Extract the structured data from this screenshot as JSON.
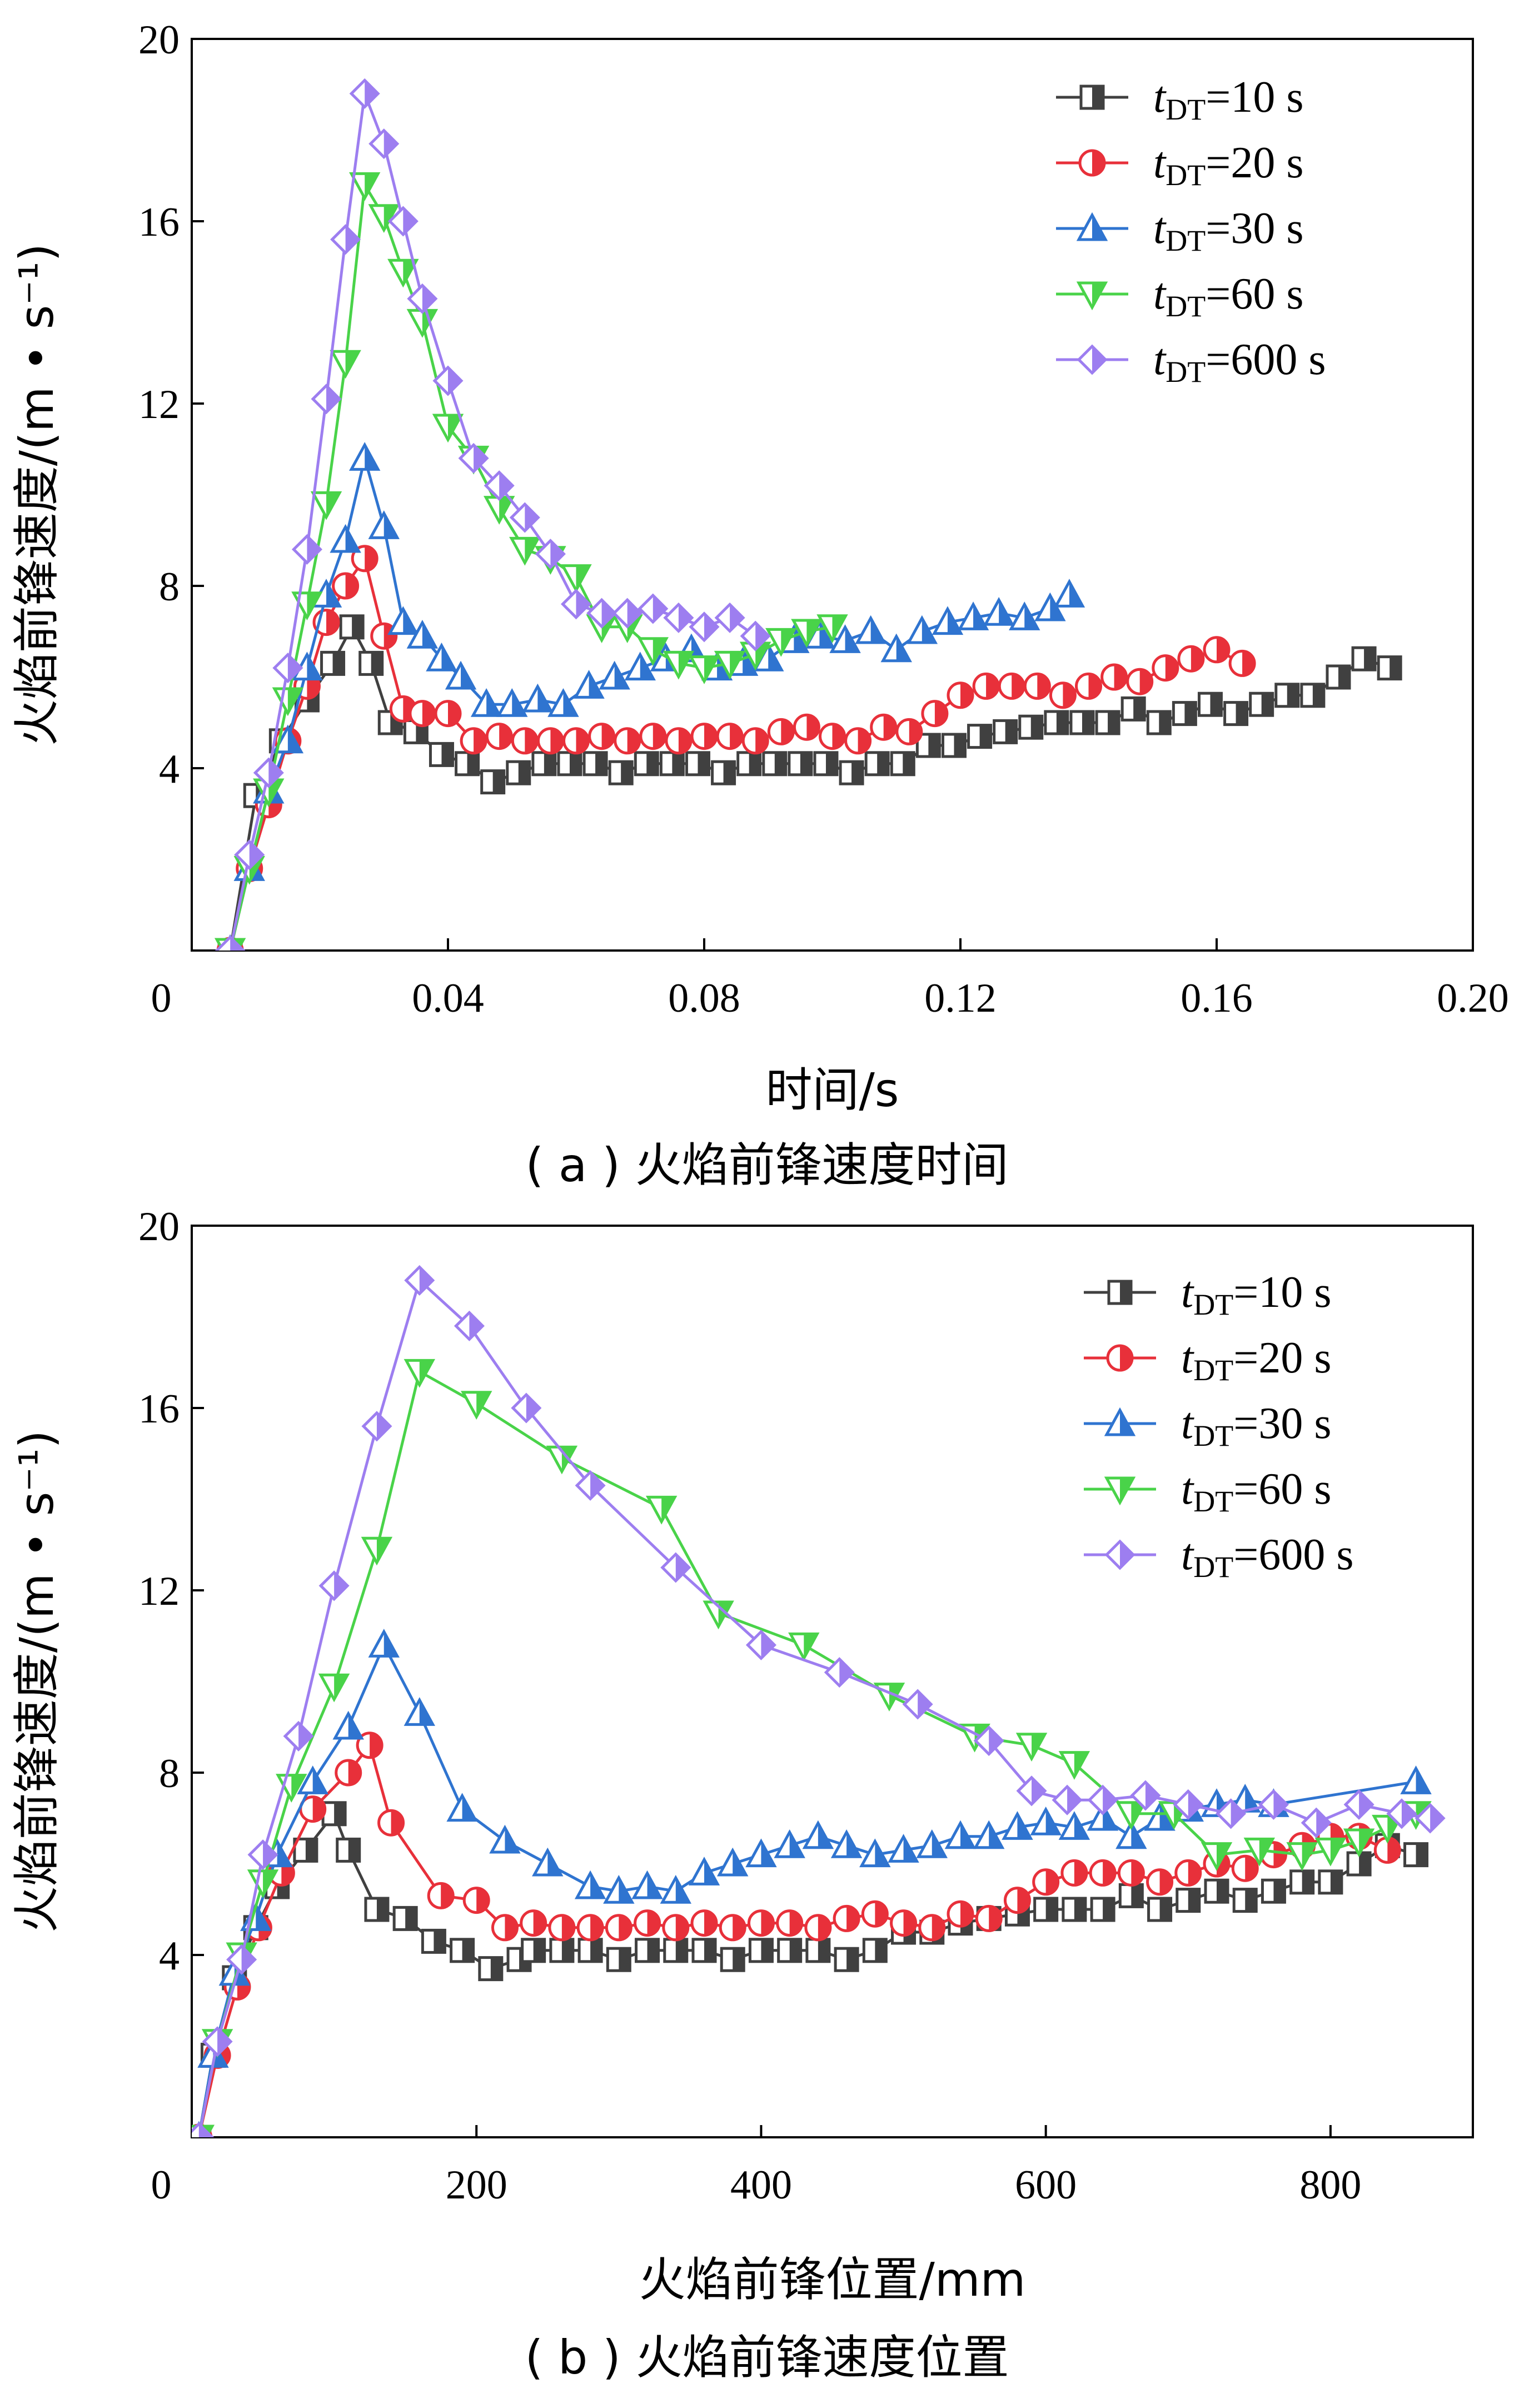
{
  "chart_data": [
    {
      "type": "line",
      "caption": "( a ) 火焰前锋速度时间",
      "xlabel": "时间/s",
      "ylabel": "火焰前锋速度/(m • s⁻¹)",
      "xlim": [
        0,
        0.2
      ],
      "ylim": [
        0,
        20
      ],
      "xticks": [
        "0",
        "0.04",
        "0.08",
        "0.12",
        "0.16",
        "0.20"
      ],
      "yticks": [
        "4",
        "8",
        "12",
        "16",
        "20"
      ],
      "legend_position": "top-right",
      "series": [
        {
          "name": "tDT=10 s",
          "name_var": "t",
          "name_sub": "DT",
          "name_rest": "=10 s",
          "color": "#404040",
          "marker": "square",
          "x": [
            0.006,
            0.01,
            0.014,
            0.018,
            0.022,
            0.025,
            0.028,
            0.031,
            0.035,
            0.039,
            0.043,
            0.047,
            0.051,
            0.055,
            0.059,
            0.063,
            0.067,
            0.071,
            0.075,
            0.079,
            0.083,
            0.087,
            0.091,
            0.095,
            0.099,
            0.103,
            0.107,
            0.111,
            0.115,
            0.119,
            0.123,
            0.127,
            0.131,
            0.135,
            0.139,
            0.143,
            0.147,
            0.151,
            0.155,
            0.159,
            0.163,
            0.167,
            0.171,
            0.175,
            0.179,
            0.183,
            0.187
          ],
          "y": [
            0,
            3.4,
            4.6,
            5.5,
            6.3,
            7.1,
            6.3,
            5.0,
            4.8,
            4.3,
            4.1,
            3.7,
            3.9,
            4.1,
            4.1,
            4.1,
            3.9,
            4.1,
            4.1,
            4.1,
            3.9,
            4.1,
            4.1,
            4.1,
            4.1,
            3.9,
            4.1,
            4.1,
            4.5,
            4.5,
            4.7,
            4.8,
            4.9,
            5.0,
            5.0,
            5.0,
            5.3,
            5.0,
            5.2,
            5.4,
            5.2,
            5.4,
            5.6,
            5.6,
            6.0,
            6.4,
            6.2
          ]
        },
        {
          "name": "tDT=20 s",
          "name_var": "t",
          "name_sub": "DT",
          "name_rest": "=20 s",
          "color": "#e8303a",
          "marker": "circle",
          "x": [
            0.006,
            0.009,
            0.012,
            0.015,
            0.018,
            0.021,
            0.024,
            0.027,
            0.03,
            0.033,
            0.036,
            0.04,
            0.044,
            0.048,
            0.052,
            0.056,
            0.06,
            0.064,
            0.068,
            0.072,
            0.076,
            0.08,
            0.084,
            0.088,
            0.092,
            0.096,
            0.1,
            0.104,
            0.108,
            0.112,
            0.116,
            0.12,
            0.124,
            0.128,
            0.132,
            0.136,
            0.14,
            0.144,
            0.148,
            0.152,
            0.156,
            0.16,
            0.164
          ],
          "y": [
            0,
            1.8,
            3.2,
            4.6,
            5.8,
            7.2,
            8.0,
            8.6,
            6.9,
            5.3,
            5.2,
            5.2,
            4.6,
            4.7,
            4.6,
            4.6,
            4.6,
            4.7,
            4.6,
            4.7,
            4.6,
            4.7,
            4.7,
            4.6,
            4.8,
            4.9,
            4.7,
            4.6,
            4.9,
            4.8,
            5.2,
            5.6,
            5.8,
            5.8,
            5.8,
            5.6,
            5.8,
            6.0,
            5.9,
            6.2,
            6.4,
            6.6,
            6.3
          ]
        },
        {
          "name": "tDT=30 s",
          "name_var": "t",
          "name_sub": "DT",
          "name_rest": "=30 s",
          "color": "#2f74d0",
          "marker": "triangle-up",
          "x": [
            0.006,
            0.009,
            0.012,
            0.015,
            0.018,
            0.021,
            0.024,
            0.027,
            0.03,
            0.033,
            0.036,
            0.039,
            0.042,
            0.046,
            0.05,
            0.054,
            0.058,
            0.062,
            0.066,
            0.07,
            0.074,
            0.078,
            0.082,
            0.086,
            0.09,
            0.094,
            0.098,
            0.102,
            0.106,
            0.11,
            0.114,
            0.118,
            0.122,
            0.126,
            0.13,
            0.134,
            0.137
          ],
          "y": [
            0,
            1.8,
            3.5,
            4.6,
            6.2,
            7.8,
            9.0,
            10.8,
            9.3,
            7.2,
            6.9,
            6.4,
            6.0,
            5.4,
            5.4,
            5.5,
            5.4,
            5.8,
            6.0,
            6.2,
            6.4,
            6.6,
            6.2,
            6.3,
            6.4,
            6.8,
            6.9,
            6.8,
            7.0,
            6.6,
            7.0,
            7.2,
            7.3,
            7.4,
            7.3,
            7.5,
            7.8
          ]
        },
        {
          "name": "tDT=60 s",
          "name_var": "t",
          "name_sub": "DT",
          "name_rest": "=60 s",
          "color": "#49d349",
          "marker": "triangle-down",
          "x": [
            0.006,
            0.009,
            0.012,
            0.015,
            0.018,
            0.021,
            0.024,
            0.027,
            0.03,
            0.033,
            0.036,
            0.04,
            0.044,
            0.048,
            0.052,
            0.056,
            0.06,
            0.064,
            0.068,
            0.072,
            0.076,
            0.08,
            0.084,
            0.088,
            0.092,
            0.096,
            0.1
          ],
          "y": [
            0,
            1.8,
            3.5,
            5.5,
            7.6,
            9.8,
            12.9,
            16.8,
            16.1,
            14.9,
            13.8,
            11.5,
            10.8,
            9.7,
            8.8,
            8.6,
            8.2,
            7.1,
            7.1,
            6.6,
            6.3,
            6.2,
            6.3,
            6.5,
            6.8,
            7.0,
            7.1
          ]
        },
        {
          "name": "tDT=600 s",
          "name_var": "t",
          "name_sub": "DT",
          "name_rest": "=600 s",
          "color": "#9d7ef0",
          "marker": "diamond",
          "x": [
            0.006,
            0.009,
            0.012,
            0.015,
            0.018,
            0.021,
            0.024,
            0.027,
            0.03,
            0.033,
            0.036,
            0.04,
            0.044,
            0.048,
            0.052,
            0.056,
            0.06,
            0.064,
            0.068,
            0.072,
            0.076,
            0.08,
            0.084,
            0.088
          ],
          "y": [
            0,
            2.1,
            3.9,
            6.2,
            8.8,
            12.1,
            15.6,
            18.8,
            17.7,
            16.0,
            14.3,
            12.5,
            10.8,
            10.2,
            9.5,
            8.7,
            7.6,
            7.4,
            7.4,
            7.5,
            7.3,
            7.1,
            7.3,
            6.9
          ]
        }
      ]
    },
    {
      "type": "line",
      "caption": "( b ) 火焰前锋速度位置",
      "xlabel": "火焰前锋位置/mm",
      "ylabel": "火焰前锋速度/(m • s⁻¹)",
      "xlim": [
        0,
        900
      ],
      "ylim": [
        0,
        20
      ],
      "xticks": [
        "0",
        "200",
        "400",
        "600",
        "800"
      ],
      "yticks": [
        "4",
        "8",
        "12",
        "16",
        "20"
      ],
      "legend_position": "top-right",
      "series": [
        {
          "name": "tDT=10 s",
          "name_var": "t",
          "name_sub": "DT",
          "name_rest": "=10 s",
          "color": "#404040",
          "marker": "square",
          "x": [
            5,
            15,
            30,
            45,
            60,
            80,
            100,
            110,
            130,
            150,
            170,
            190,
            210,
            230,
            240,
            260,
            280,
            300,
            320,
            340,
            360,
            380,
            400,
            420,
            440,
            460,
            480,
            500,
            520,
            540,
            560,
            580,
            600,
            620,
            640,
            660,
            680,
            700,
            720,
            740,
            760,
            780,
            800,
            820,
            840,
            860
          ],
          "y": [
            0,
            1.8,
            3.5,
            4.6,
            5.5,
            6.3,
            7.1,
            6.3,
            5.0,
            4.8,
            4.3,
            4.1,
            3.7,
            3.9,
            4.1,
            4.1,
            4.1,
            3.9,
            4.1,
            4.1,
            4.1,
            3.9,
            4.1,
            4.1,
            4.1,
            3.9,
            4.1,
            4.5,
            4.5,
            4.7,
            4.8,
            4.9,
            5.0,
            5.0,
            5.0,
            5.3,
            5.0,
            5.2,
            5.4,
            5.2,
            5.4,
            5.6,
            5.6,
            6.0,
            6.4,
            6.2
          ]
        },
        {
          "name": "tDT=20 s",
          "name_var": "t",
          "name_sub": "DT",
          "name_rest": "=20 s",
          "color": "#e8303a",
          "marker": "circle",
          "x": [
            5,
            18,
            32,
            47,
            63,
            85,
            110,
            125,
            140,
            175,
            200,
            220,
            240,
            260,
            280,
            300,
            320,
            340,
            360,
            380,
            400,
            420,
            440,
            460,
            480,
            500,
            520,
            540,
            560,
            580,
            600,
            620,
            640,
            660,
            680,
            700,
            720,
            740,
            760,
            780,
            800,
            820,
            840
          ],
          "y": [
            0,
            1.8,
            3.3,
            4.6,
            5.8,
            7.2,
            8.0,
            8.6,
            6.9,
            5.3,
            5.2,
            4.6,
            4.7,
            4.6,
            4.6,
            4.6,
            4.7,
            4.6,
            4.7,
            4.6,
            4.7,
            4.7,
            4.6,
            4.8,
            4.9,
            4.7,
            4.6,
            4.9,
            4.8,
            5.2,
            5.6,
            5.8,
            5.8,
            5.8,
            5.6,
            5.8,
            6.0,
            5.9,
            6.2,
            6.4,
            6.6,
            6.6,
            6.3
          ]
        },
        {
          "name": "tDT=30 s",
          "name_var": "t",
          "name_sub": "DT",
          "name_rest": "=30 s",
          "color": "#2f74d0",
          "marker": "triangle-up",
          "x": [
            5,
            15,
            30,
            45,
            60,
            85,
            110,
            135,
            160,
            190,
            220,
            250,
            280,
            300,
            320,
            340,
            360,
            380,
            400,
            420,
            440,
            460,
            480,
            500,
            520,
            540,
            560,
            580,
            600,
            620,
            640,
            660,
            680,
            700,
            720,
            740,
            760,
            860
          ],
          "y": [
            0,
            1.8,
            3.6,
            4.8,
            6.2,
            7.8,
            9.0,
            10.8,
            9.3,
            7.2,
            6.5,
            6.0,
            5.5,
            5.4,
            5.5,
            5.4,
            5.8,
            6.0,
            6.2,
            6.4,
            6.6,
            6.4,
            6.2,
            6.3,
            6.4,
            6.6,
            6.6,
            6.8,
            6.9,
            6.8,
            7.0,
            6.6,
            7.0,
            7.2,
            7.3,
            7.4,
            7.3,
            7.8
          ]
        },
        {
          "name": "tDT=60 s",
          "name_var": "t",
          "name_sub": "DT",
          "name_rest": "=60 s",
          "color": "#49d349",
          "marker": "triangle-down",
          "x": [
            5,
            18,
            35,
            50,
            70,
            100,
            130,
            160,
            200,
            260,
            330,
            370,
            430,
            490,
            550,
            590,
            620,
            660,
            690,
            720,
            750,
            780,
            800,
            820,
            840,
            860
          ],
          "y": [
            0,
            2.1,
            4.0,
            5.6,
            7.7,
            9.9,
            12.9,
            16.8,
            16.1,
            14.9,
            13.8,
            11.5,
            10.8,
            9.7,
            8.8,
            8.6,
            8.2,
            7.1,
            7.1,
            6.2,
            6.3,
            6.2,
            6.3,
            6.5,
            6.8,
            7.1
          ]
        },
        {
          "name": "tDT=600 s",
          "name_var": "t",
          "name_sub": "DT",
          "name_rest": "=600 s",
          "color": "#9d7ef0",
          "marker": "diamond",
          "x": [
            5,
            18,
            35,
            50,
            75,
            100,
            130,
            160,
            195,
            235,
            280,
            340,
            400,
            455,
            510,
            560,
            590,
            615,
            640,
            670,
            700,
            730,
            760,
            790,
            820,
            850,
            870
          ],
          "y": [
            0,
            2.1,
            3.9,
            6.2,
            8.8,
            12.1,
            15.6,
            18.8,
            17.8,
            16.0,
            14.3,
            12.5,
            10.8,
            10.2,
            9.5,
            8.7,
            7.6,
            7.4,
            7.4,
            7.5,
            7.3,
            7.1,
            7.3,
            6.9,
            7.3,
            7.1,
            7.0
          ]
        }
      ]
    }
  ]
}
